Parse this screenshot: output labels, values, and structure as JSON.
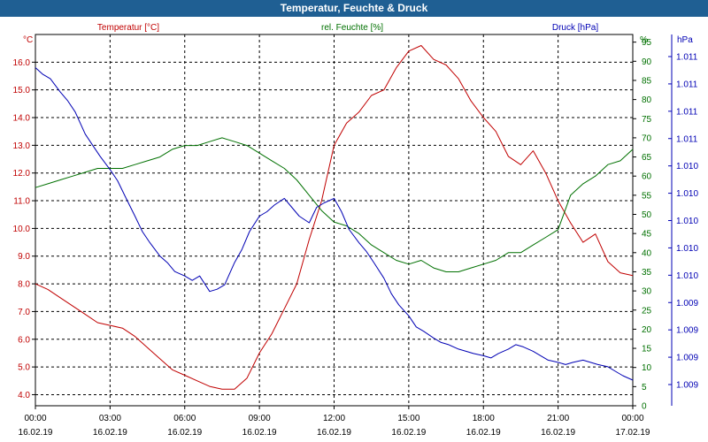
{
  "window": {
    "title": "Temperatur, Feuchte & Druck"
  },
  "colors": {
    "temperature": "#c00000",
    "humidity": "#007000",
    "pressure": "#0000b4",
    "grid": "#000000",
    "titlebar": "#1f5f93"
  },
  "chart_data": {
    "type": "line",
    "title": "Temperatur, Feuchte & Druck",
    "x_labels": [
      {
        "time": "00:00",
        "date": "16.02.19"
      },
      {
        "time": "03:00",
        "date": "16.02.19"
      },
      {
        "time": "06:00",
        "date": "16.02.19"
      },
      {
        "time": "09:00",
        "date": "16.02.19"
      },
      {
        "time": "12:00",
        "date": "16.02.19"
      },
      {
        "time": "15:00",
        "date": "16.02.19"
      },
      {
        "time": "18:00",
        "date": "16.02.19"
      },
      {
        "time": "21:00",
        "date": "16.02.19"
      },
      {
        "time": "00:00",
        "date": "17.02.19"
      }
    ],
    "xlim_hours": [
      0,
      24
    ],
    "grid": true,
    "axes": {
      "temperature": {
        "label": "Temperatur [°C]",
        "unit": "°C",
        "ylim": [
          3.6,
          17.0
        ],
        "ticks": [
          "4.0",
          "5.0",
          "6.0",
          "7.0",
          "8.0",
          "9.0",
          "10.0",
          "11.0",
          "12.0",
          "13.0",
          "14.0",
          "15.0",
          "16.0"
        ]
      },
      "humidity": {
        "label": "rel. Feuchte [%]",
        "unit": "%",
        "ylim": [
          0,
          97
        ],
        "ticks": [
          "0",
          "5",
          "10",
          "15",
          "20",
          "25",
          "30",
          "35",
          "40",
          "45",
          "50",
          "55",
          "60",
          "65",
          "70",
          "75",
          "80",
          "85",
          "90",
          "95"
        ]
      },
      "pressure": {
        "label": "Druck [hPa]",
        "unit": "hPa",
        "ticks": [
          "1.009",
          "1.009",
          "1.009",
          "1.009",
          "1.010",
          "1.010",
          "1.010",
          "1.010",
          "1.010",
          "1.011",
          "1.011",
          "1.011",
          "1.011"
        ]
      }
    },
    "series": [
      {
        "name": "Temperatur [°C]",
        "axis": "temperature",
        "x": [
          0,
          0.5,
          1,
          1.5,
          2,
          2.5,
          3,
          3.5,
          4,
          4.5,
          5,
          5.5,
          6,
          6.5,
          7,
          7.5,
          8,
          8.5,
          9,
          9.5,
          10,
          10.5,
          11,
          11.5,
          12,
          12.5,
          13,
          13.5,
          14,
          14.5,
          15,
          15.5,
          16,
          16.5,
          17,
          17.5,
          18,
          18.5,
          19,
          19.5,
          20,
          20.5,
          21,
          21.5,
          22,
          22.5,
          23,
          23.5,
          24
        ],
        "values": [
          8.0,
          7.8,
          7.5,
          7.2,
          6.9,
          6.6,
          6.5,
          6.4,
          6.1,
          5.7,
          5.3,
          4.9,
          4.7,
          4.5,
          4.3,
          4.2,
          4.2,
          4.6,
          5.5,
          6.2,
          7.1,
          8.0,
          9.6,
          11.0,
          13.0,
          13.8,
          14.2,
          14.8,
          15.0,
          15.8,
          16.4,
          16.6,
          16.1,
          15.9,
          15.4,
          14.6,
          14.0,
          13.5,
          12.6,
          12.3,
          12.8,
          12.0,
          11.0,
          10.2,
          9.5,
          9.8,
          8.8,
          8.4,
          8.3
        ]
      },
      {
        "name": "rel. Feuchte [%]",
        "axis": "humidity",
        "x": [
          0,
          0.5,
          1,
          1.5,
          2,
          2.5,
          3,
          3.5,
          4,
          4.5,
          5,
          5.5,
          6,
          6.5,
          7,
          7.5,
          8,
          8.5,
          9,
          9.5,
          10,
          10.5,
          11,
          11.5,
          12,
          12.5,
          13,
          13.5,
          14,
          14.5,
          15,
          15.5,
          16,
          16.5,
          17,
          17.5,
          18,
          18.5,
          19,
          19.5,
          20,
          20.5,
          21,
          21.5,
          22,
          22.5,
          23,
          23.5,
          24
        ],
        "values": [
          57,
          58,
          59,
          60,
          61,
          62,
          62,
          62,
          63,
          64,
          65,
          67,
          68,
          68,
          69,
          70,
          69,
          68,
          66,
          64,
          62,
          59,
          55,
          51,
          48,
          47,
          45,
          42,
          40,
          38,
          37,
          38,
          36,
          35,
          35,
          36,
          37,
          38,
          40,
          40,
          42,
          44,
          46,
          55,
          58,
          60,
          63,
          64,
          67
        ]
      },
      {
        "name": "Druck [hPa]",
        "axis": "pressure",
        "x": [
          0,
          0.3,
          0.6,
          1,
          1.3,
          1.6,
          2,
          2.3,
          2.6,
          3,
          3.3,
          3.6,
          4,
          4.3,
          4.6,
          5,
          5.3,
          5.6,
          6,
          6.3,
          6.6,
          7,
          7.3,
          7.6,
          8,
          8.3,
          8.6,
          9,
          9.3,
          9.6,
          10,
          10.3,
          10.6,
          11,
          11.3,
          11.6,
          12,
          12.3,
          12.6,
          13,
          13.3,
          13.6,
          14,
          14.3,
          14.6,
          15,
          15.3,
          15.6,
          16,
          16.3,
          16.6,
          17,
          17.3,
          17.6,
          18,
          18.3,
          18.6,
          19,
          19.3,
          19.6,
          20,
          20.3,
          20.6,
          21,
          21.3,
          21.6,
          22,
          22.3,
          22.6,
          23,
          23.3,
          23.6,
          24
        ],
        "values": [
          143,
          140,
          138,
          132,
          128,
          123,
          113,
          108,
          103,
          97,
          92,
          85,
          76,
          69,
          64,
          58,
          55,
          51,
          49,
          47,
          49,
          42,
          43,
          45,
          55,
          61,
          69,
          76,
          78,
          81,
          84,
          80,
          76,
          73,
          80,
          82,
          84,
          78,
          70,
          64,
          60,
          55,
          48,
          41,
          36,
          31,
          26,
          24,
          21,
          19,
          18,
          16,
          15,
          14,
          13,
          12,
          14,
          16,
          18,
          17,
          15,
          13,
          11,
          10,
          9,
          10,
          11,
          10,
          9,
          8,
          6,
          4,
          2
        ]
      }
    ]
  }
}
